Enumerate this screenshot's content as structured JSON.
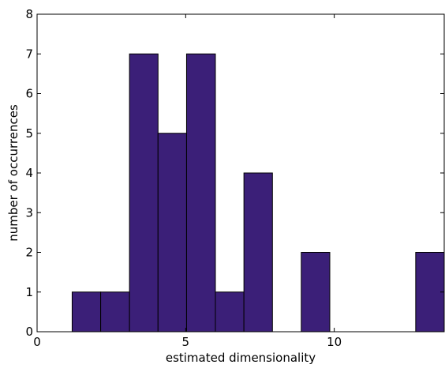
{
  "chart_data": {
    "type": "histogram",
    "bins": [
      1.18,
      2.14,
      3.11,
      4.07,
      5.03,
      6.0,
      6.96,
      7.92,
      8.89,
      9.85,
      10.81,
      11.78,
      12.74,
      13.7
    ],
    "counts": [
      1,
      1,
      7,
      5,
      7,
      1,
      4,
      0,
      2,
      0,
      0,
      0,
      2
    ],
    "color": "#3b1f78",
    "xlabel": "estimated dimensionality",
    "ylabel": "number of occurrences",
    "xlim": [
      0,
      13.7
    ],
    "xticks": [
      0,
      5,
      10
    ],
    "ylim": [
      0,
      8
    ],
    "yticks": [
      0,
      1,
      2,
      3,
      4,
      5,
      6,
      7,
      8
    ],
    "grid": false
  }
}
